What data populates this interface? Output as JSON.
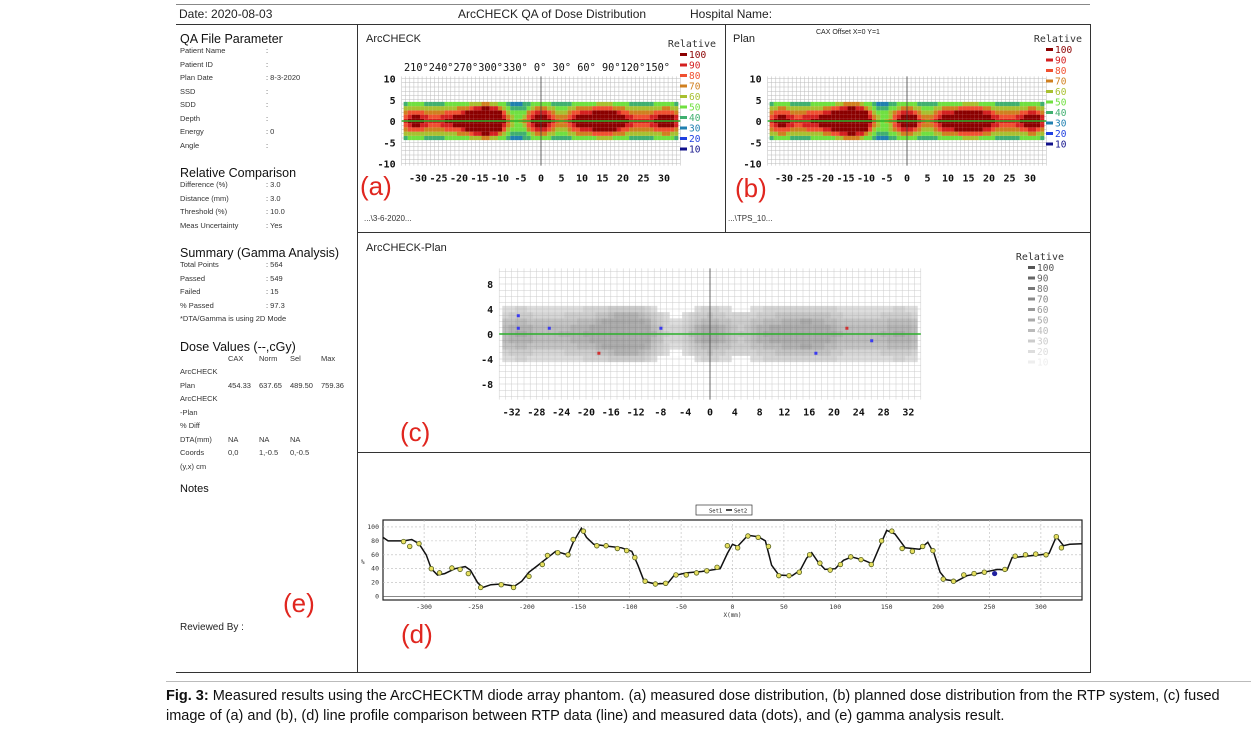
{
  "header": {
    "date": "Date: 2020-08-03",
    "title": "ArcCHECK QA of Dose Distribution",
    "hospital": "Hospital Name:"
  },
  "qa_params": {
    "title": "QA File Parameter",
    "rows": [
      [
        "Patient Name",
        ":"
      ],
      [
        "Patient ID",
        ":"
      ],
      [
        "Plan Date",
        ": 8-3-2020"
      ],
      [
        "SSD",
        ":"
      ],
      [
        "SDD",
        ":"
      ],
      [
        "Depth",
        ":"
      ],
      [
        "Energy",
        ": 0"
      ],
      [
        "Angle",
        ":"
      ]
    ]
  },
  "relative": {
    "title": "Relative Comparison",
    "rows": [
      [
        "Difference (%)",
        ": 3.0"
      ],
      [
        "Distance (mm)",
        ": 3.0"
      ],
      [
        "Threshold (%)",
        ": 10.0"
      ],
      [
        "Meas Uncertainty",
        ": Yes"
      ]
    ]
  },
  "summary": {
    "title": "Summary (Gamma Analysis)",
    "rows": [
      [
        "Total Points",
        ": 564"
      ],
      [
        "Passed",
        ": 549"
      ],
      [
        "Failed",
        ": 15"
      ],
      [
        "% Passed",
        ": 97.3"
      ]
    ],
    "note": "*DTA/Gamma is using 2D Mode"
  },
  "dose": {
    "title": "Dose Values (--,cGy)",
    "cols": [
      "",
      "CAX",
      "Norm",
      "Sel",
      "Max"
    ],
    "rows": [
      [
        "ArcCHECK",
        "",
        "",
        "",
        ""
      ],
      [
        "Plan",
        "454.33",
        "637.65",
        "489.50",
        "759.36"
      ],
      [
        "ArcCHECK",
        "",
        "",
        "",
        ""
      ],
      [
        "-Plan",
        "",
        "",
        "",
        ""
      ],
      [
        "% Diff",
        "",
        "",
        "",
        ""
      ],
      [
        "DTA(mm)",
        "NA",
        "NA",
        "NA",
        ""
      ],
      [
        "Coords",
        "0,0",
        "1,-0.5",
        "0,-0.5",
        ""
      ],
      [
        "(y,x) cm",
        "",
        "",
        "",
        ""
      ]
    ]
  },
  "notes": "Notes",
  "reviewed": "Reviewed By :",
  "panel_a": {
    "title": "ArcCHECK",
    "legend_title": "Relative",
    "angles": "210°240°270°300°330°   0°  30° 60° 90°120°150°",
    "file": "...\\3-6-2020...",
    "label": "(a)"
  },
  "panel_b": {
    "title": "Plan",
    "offset": "CAX Offset X=0 Y=1",
    "legend_title": "Relative",
    "file": "...\\TPS_10...",
    "label": "(b)"
  },
  "panel_c": {
    "title": "ArcCHECK-Plan",
    "legend_title": "Relative",
    "label": "(c)"
  },
  "panel_d": {
    "label": "(d)",
    "legend": [
      "Set1",
      "Set2"
    ],
    "xlabel": "X(mm)",
    "ylabel": "%"
  },
  "panel_e": {
    "label": "(e)"
  },
  "legend_levels": [
    "100",
    "90",
    "80",
    "70",
    "60",
    "50",
    "40",
    "30",
    "20",
    "10"
  ],
  "legend_colors": [
    "#8b0000",
    "#d42020",
    "#f05030",
    "#d08020",
    "#a8c030",
    "#70e040",
    "#40b070",
    "#2080b0",
    "#2040e0",
    "#10108a"
  ],
  "gray_colors": [
    "#555",
    "#666",
    "#777",
    "#888",
    "#999",
    "#aaa",
    "#bbb",
    "#ccc",
    "#ddd",
    "#eee"
  ],
  "heat_axes": {
    "x_ticks": [
      -30,
      -25,
      -20,
      -15,
      -10,
      -5,
      0,
      5,
      10,
      15,
      20,
      25,
      30
    ],
    "y_ticks": [
      10,
      5,
      0,
      -5,
      -10
    ],
    "c_x_ticks": [
      -32,
      -28,
      -24,
      -20,
      -16,
      -12,
      -8,
      -4,
      0,
      4,
      8,
      12,
      16,
      20,
      24,
      28,
      32
    ],
    "c_y_ticks": [
      8,
      4,
      0,
      -4,
      -8
    ]
  },
  "chart_data": {
    "type": "line",
    "title": "",
    "xlabel": "X(mm)",
    "ylabel": "%",
    "xlim": [
      -340,
      340
    ],
    "ylim": [
      -5,
      110
    ],
    "x_ticks": [
      -300,
      -250,
      -200,
      -150,
      -100,
      -50,
      0,
      50,
      100,
      150,
      200,
      250,
      300
    ],
    "y_ticks": [
      0,
      20,
      40,
      60,
      80,
      100
    ],
    "series": [
      {
        "name": "Set2",
        "style": "line",
        "points": [
          [
            -340,
            85
          ],
          [
            -335,
            80
          ],
          [
            -320,
            80
          ],
          [
            -312,
            82
          ],
          [
            -305,
            76
          ],
          [
            -298,
            60
          ],
          [
            -293,
            40
          ],
          [
            -287,
            31
          ],
          [
            -280,
            33
          ],
          [
            -270,
            40
          ],
          [
            -260,
            43
          ],
          [
            -255,
            38
          ],
          [
            -248,
            20
          ],
          [
            -243,
            13
          ],
          [
            -235,
            17
          ],
          [
            -225,
            18
          ],
          [
            -212,
            15
          ],
          [
            -205,
            22
          ],
          [
            -198,
            35
          ],
          [
            -190,
            44
          ],
          [
            -178,
            58
          ],
          [
            -172,
            65
          ],
          [
            -160,
            60
          ],
          [
            -155,
            78
          ],
          [
            -147,
            98
          ],
          [
            -142,
            85
          ],
          [
            -135,
            75
          ],
          [
            -120,
            72
          ],
          [
            -108,
            70
          ],
          [
            -98,
            65
          ],
          [
            -92,
            45
          ],
          [
            -86,
            22
          ],
          [
            -75,
            18
          ],
          [
            -63,
            19
          ],
          [
            -57,
            30
          ],
          [
            -45,
            34
          ],
          [
            -30,
            36
          ],
          [
            -12,
            40
          ],
          [
            -5,
            62
          ],
          [
            0,
            75
          ],
          [
            5,
            72
          ],
          [
            15,
            88
          ],
          [
            25,
            86
          ],
          [
            32,
            80
          ],
          [
            38,
            45
          ],
          [
            45,
            31
          ],
          [
            58,
            30
          ],
          [
            66,
            38
          ],
          [
            72,
            55
          ],
          [
            77,
            63
          ],
          [
            83,
            50
          ],
          [
            90,
            39
          ],
          [
            100,
            40
          ],
          [
            108,
            52
          ],
          [
            116,
            57
          ],
          [
            128,
            52
          ],
          [
            136,
            47
          ],
          [
            142,
            68
          ],
          [
            150,
            95
          ],
          [
            158,
            90
          ],
          [
            168,
            70
          ],
          [
            182,
            68
          ],
          [
            190,
            78
          ],
          [
            196,
            62
          ],
          [
            202,
            35
          ],
          [
            208,
            24
          ],
          [
            218,
            22
          ],
          [
            228,
            30
          ],
          [
            245,
            35
          ],
          [
            258,
            39
          ],
          [
            267,
            38
          ],
          [
            272,
            56
          ],
          [
            285,
            58
          ],
          [
            300,
            60
          ],
          [
            308,
            62
          ],
          [
            315,
            86
          ],
          [
            322,
            73
          ],
          [
            328,
            75
          ],
          [
            340,
            76
          ]
        ]
      },
      {
        "name": "Set1",
        "style": "points",
        "points": [
          [
            -320,
            79
          ],
          [
            -314,
            72
          ],
          [
            -305,
            76
          ],
          [
            -293,
            40
          ],
          [
            -285,
            34
          ],
          [
            -273,
            41
          ],
          [
            -265,
            39
          ],
          [
            -257,
            33
          ],
          [
            -245,
            13
          ],
          [
            -225,
            17
          ],
          [
            -213,
            13
          ],
          [
            -198,
            29
          ],
          [
            -185,
            46
          ],
          [
            -180,
            59
          ],
          [
            -170,
            63
          ],
          [
            -160,
            60
          ],
          [
            -155,
            82
          ],
          [
            -145,
            94
          ],
          [
            -132,
            73
          ],
          [
            -123,
            73
          ],
          [
            -112,
            69
          ],
          [
            -103,
            66
          ],
          [
            -95,
            56
          ],
          [
            -85,
            22
          ],
          [
            -75,
            18
          ],
          [
            -65,
            19
          ],
          [
            -55,
            31
          ],
          [
            -45,
            31
          ],
          [
            -35,
            34
          ],
          [
            -25,
            37
          ],
          [
            -15,
            42
          ],
          [
            -5,
            73
          ],
          [
            5,
            70
          ],
          [
            15,
            87
          ],
          [
            25,
            85
          ],
          [
            35,
            72
          ],
          [
            45,
            30
          ],
          [
            55,
            30
          ],
          [
            65,
            35
          ],
          [
            75,
            60
          ],
          [
            85,
            48
          ],
          [
            95,
            38
          ],
          [
            105,
            46
          ],
          [
            115,
            57
          ],
          [
            125,
            53
          ],
          [
            135,
            46
          ],
          [
            145,
            80
          ],
          [
            155,
            94
          ],
          [
            165,
            69
          ],
          [
            175,
            65
          ],
          [
            185,
            72
          ],
          [
            195,
            66
          ],
          [
            205,
            25
          ],
          [
            215,
            22
          ],
          [
            225,
            31
          ],
          [
            235,
            33
          ],
          [
            245,
            35
          ],
          [
            265,
            39
          ],
          [
            275,
            58
          ],
          [
            285,
            60
          ],
          [
            295,
            61
          ],
          [
            305,
            60
          ],
          [
            315,
            86
          ],
          [
            320,
            70
          ]
        ]
      }
    ],
    "highlight_point": [
      255,
      33
    ]
  },
  "caption": {
    "fig": "Fig. 3:",
    "text": " Measured results using the ArcCHECKTM diode array phantom. (a) measured dose distribution, (b) planned dose distribution from the RTP system, (c) fused image of (a) and (b), (d) line profile comparison between RTP data (line) and measured data (dots), and (e) gamma analysis result."
  }
}
